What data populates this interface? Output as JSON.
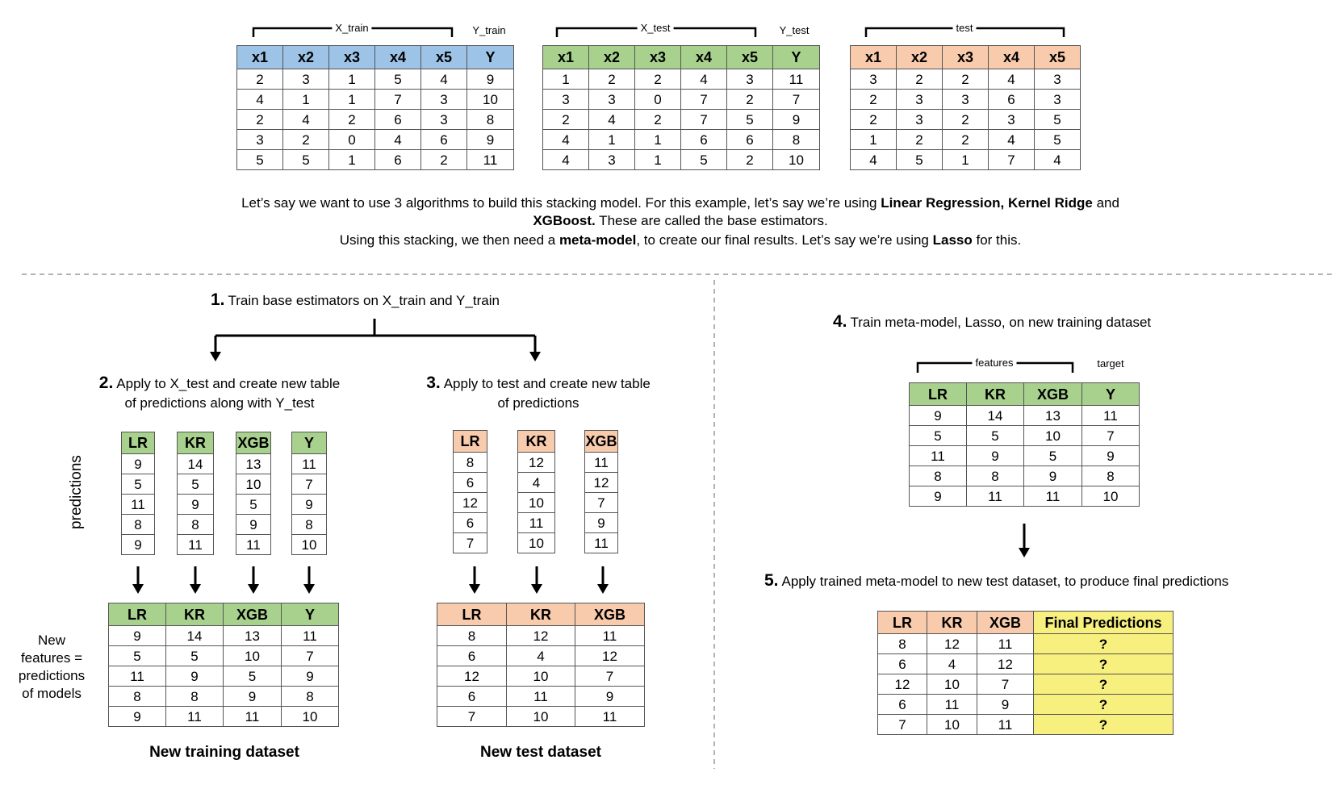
{
  "top": {
    "labels": {
      "x_train": "X_train",
      "y_train": "Y_train",
      "x_test": "X_test",
      "y_test": "Y_test",
      "test": "test"
    },
    "colors": {
      "train_header": "#9dc3e6",
      "x_test_header": "#a9d18e",
      "test_header": "#f8cbad",
      "final_predictions": "#f7ef7e"
    }
  },
  "tables": {
    "train": {
      "headers": [
        "x1",
        "x2",
        "x3",
        "x4",
        "x5",
        "Y"
      ],
      "rows": [
        [
          "2",
          "3",
          "1",
          "5",
          "4",
          "9"
        ],
        [
          "4",
          "1",
          "1",
          "7",
          "3",
          "10"
        ],
        [
          "2",
          "4",
          "2",
          "6",
          "3",
          "8"
        ],
        [
          "3",
          "2",
          "0",
          "4",
          "6",
          "9"
        ],
        [
          "5",
          "5",
          "1",
          "6",
          "2",
          "11"
        ]
      ]
    },
    "xtest": {
      "headers": [
        "x1",
        "x2",
        "x3",
        "x4",
        "x5",
        "Y"
      ],
      "rows": [
        [
          "1",
          "2",
          "2",
          "4",
          "3",
          "11"
        ],
        [
          "3",
          "3",
          "0",
          "7",
          "2",
          "7"
        ],
        [
          "2",
          "4",
          "2",
          "7",
          "5",
          "9"
        ],
        [
          "4",
          "1",
          "1",
          "6",
          "6",
          "8"
        ],
        [
          "4",
          "3",
          "1",
          "5",
          "2",
          "10"
        ]
      ]
    },
    "test": {
      "headers": [
        "x1",
        "x2",
        "x3",
        "x4",
        "x5"
      ],
      "rows": [
        [
          "3",
          "2",
          "2",
          "4",
          "3"
        ],
        [
          "2",
          "3",
          "3",
          "6",
          "3"
        ],
        [
          "2",
          "3",
          "2",
          "3",
          "5"
        ],
        [
          "1",
          "2",
          "2",
          "4",
          "5"
        ],
        [
          "4",
          "5",
          "1",
          "7",
          "4"
        ]
      ]
    },
    "new_train": {
      "headers": [
        "LR",
        "KR",
        "XGB",
        "Y"
      ],
      "rows": [
        [
          "9",
          "14",
          "13",
          "11"
        ],
        [
          "5",
          "5",
          "10",
          "7"
        ],
        [
          "11",
          "9",
          "5",
          "9"
        ],
        [
          "8",
          "8",
          "9",
          "8"
        ],
        [
          "9",
          "11",
          "11",
          "10"
        ]
      ]
    },
    "new_test": {
      "headers": [
        "LR",
        "KR",
        "XGB"
      ],
      "rows": [
        [
          "8",
          "12",
          "11"
        ],
        [
          "6",
          "4",
          "12"
        ],
        [
          "12",
          "10",
          "7"
        ],
        [
          "6",
          "11",
          "9"
        ],
        [
          "7",
          "10",
          "11"
        ]
      ]
    },
    "meta_train": {
      "headers": [
        "LR",
        "KR",
        "XGB",
        "Y"
      ],
      "rows": [
        [
          "9",
          "14",
          "13",
          "11"
        ],
        [
          "5",
          "5",
          "10",
          "7"
        ],
        [
          "11",
          "9",
          "5",
          "9"
        ],
        [
          "8",
          "8",
          "9",
          "8"
        ],
        [
          "9",
          "11",
          "11",
          "10"
        ]
      ]
    },
    "final": {
      "headers": [
        "LR",
        "KR",
        "XGB",
        "Final Predictions"
      ],
      "rows": [
        [
          "8",
          "12",
          "11",
          "?"
        ],
        [
          "6",
          "4",
          "12",
          "?"
        ],
        [
          "12",
          "10",
          "7",
          "?"
        ],
        [
          "6",
          "11",
          "9",
          "?"
        ],
        [
          "7",
          "10",
          "11",
          "?"
        ]
      ]
    }
  },
  "columns": {
    "step2": [
      {
        "header": "LR",
        "values": [
          "9",
          "5",
          "11",
          "8",
          "9"
        ]
      },
      {
        "header": "KR",
        "values": [
          "14",
          "5",
          "9",
          "8",
          "11"
        ]
      },
      {
        "header": "XGB",
        "values": [
          "13",
          "10",
          "5",
          "9",
          "11"
        ]
      },
      {
        "header": "Y",
        "values": [
          "11",
          "7",
          "9",
          "8",
          "10"
        ]
      }
    ],
    "step3": [
      {
        "header": "LR",
        "values": [
          "8",
          "6",
          "12",
          "6",
          "7"
        ]
      },
      {
        "header": "KR",
        "values": [
          "12",
          "4",
          "10",
          "11",
          "10"
        ]
      },
      {
        "header": "XGB",
        "values": [
          "11",
          "12",
          "7",
          "9",
          "11"
        ]
      }
    ]
  },
  "intro": {
    "l1a": "Let’s say we want to use 3 algorithms to build this stacking model. For this example, let’s say we’re using ",
    "l1b": "Linear Regression, Kernel Ridge",
    "l1c": " and",
    "l2a": "XGBoost.",
    "l2b": " These are called the base estimators.",
    "l3a": "Using this stacking, we then need a ",
    "l3b": "meta-model",
    "l3c": ", to create our final results. Let’s say we’re using ",
    "l3d": "Lasso",
    "l3e": " for this."
  },
  "steps": {
    "s1": {
      "num": "1.",
      "text": "Train base estimators on X_train and Y_train"
    },
    "s2": {
      "num": "2.",
      "line1": "Apply to X_test and create new table",
      "line2": "of predictions along with Y_test"
    },
    "s3": {
      "num": "3.",
      "line1": "Apply to test and create new table",
      "line2": "of predictions"
    },
    "s4": {
      "num": "4.",
      "text": "Train meta-model, Lasso, on new training dataset"
    },
    "s5": {
      "num": "5.",
      "text": "Apply trained meta-model to new test dataset, to produce final predictions"
    }
  },
  "labels": {
    "predictions": "predictions",
    "new_features": [
      "New",
      "features =",
      "predictions",
      "of models"
    ],
    "new_training_dataset": "New training dataset",
    "new_test_dataset": "New test dataset",
    "features": "features",
    "target": "target"
  }
}
